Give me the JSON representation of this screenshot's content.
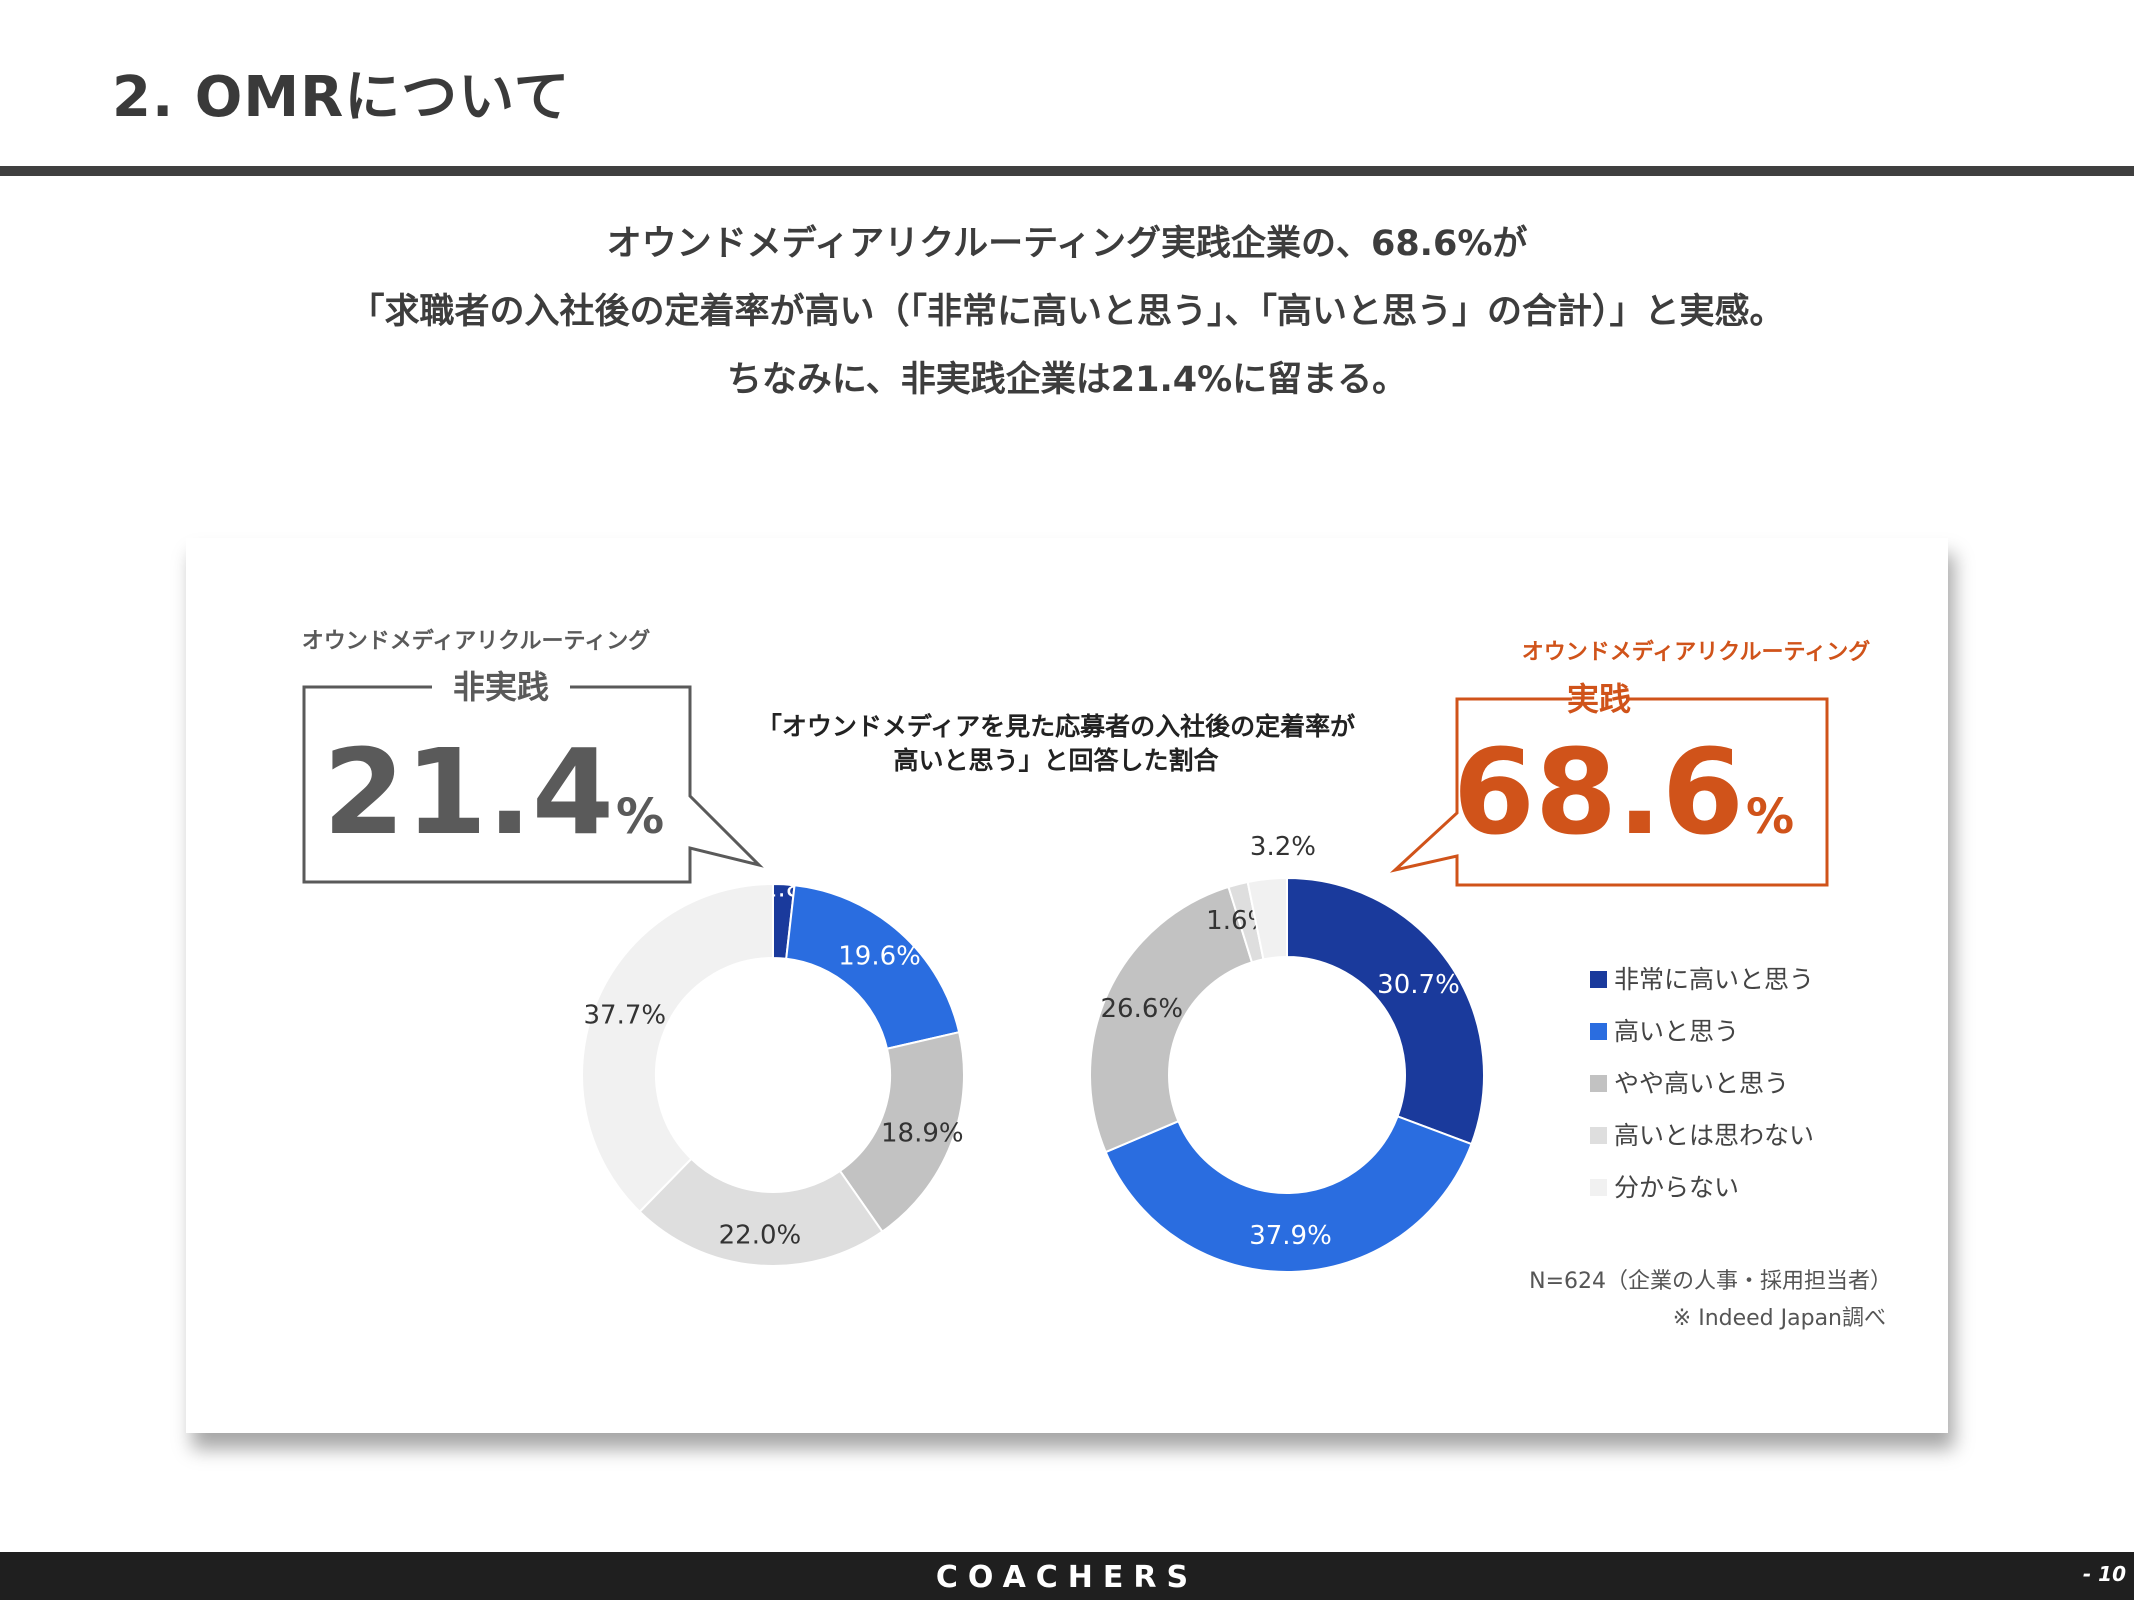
{
  "slide": {
    "title": "2. OMRについて",
    "headline_lines": [
      "オウンドメディアリクルーティング実践企業の、68.6%が",
      "「求職者の入社後の定着率が高い（「非常に高いと思う」、「高いと思う」の合計）」と実感。",
      "ちなみに、非実践企業は21.4%に留まる。"
    ]
  },
  "footer": {
    "brand": "COACHERS",
    "page": "- 10"
  },
  "colors": {
    "text": "#3b3b3b",
    "accent_orange": "#d0531a",
    "callout_gray": "#5a5a5a",
    "series": [
      "#1a3a9c",
      "#2a6de0",
      "#c2c2c2",
      "#dedede",
      "#f1f1f1"
    ]
  },
  "chart_data": {
    "type": "donut",
    "title": "「オウンドメディアを見た応募者の入社後の定着率が高いと思う」と回答した割合",
    "title_lines": [
      "「オウンドメディアを見た応募者の入社後の定着率が",
      "高いと思う」と回答した割合"
    ],
    "categories": [
      "非常に高いと思う",
      "高いと思う",
      "やや高いと思う",
      "高いとは思わない",
      "分からない"
    ],
    "series": [
      {
        "name": "非実践",
        "values": [
          1.8,
          19.6,
          18.9,
          22.0,
          37.7
        ]
      },
      {
        "name": "実践",
        "values": [
          30.7,
          37.9,
          26.6,
          1.6,
          3.2
        ]
      }
    ],
    "callouts": [
      {
        "label_top": "オウンドメディアリクルーティング",
        "label": "非実践",
        "value": "21.4",
        "unit": "%"
      },
      {
        "label_top": "オウンドメディアリクルーティング",
        "label": "実践",
        "value": "68.6",
        "unit": "%"
      }
    ],
    "notes": [
      "N=624（企業の人事・採用担当者）",
      "※ Indeed Japan調べ"
    ]
  }
}
